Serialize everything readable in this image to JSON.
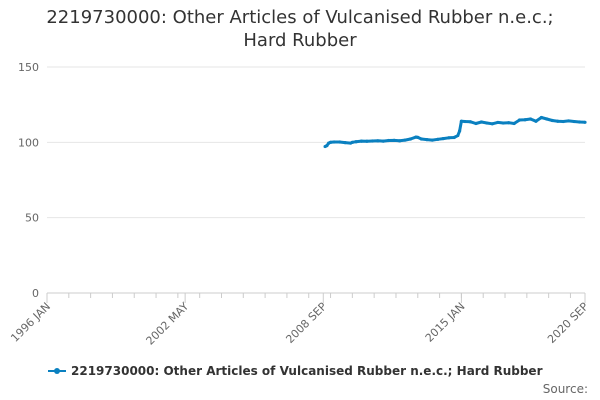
{
  "title_line1": "2219730000: Other Articles of Vulcanised Rubber n.e.c.;",
  "title_line2": "Hard Rubber",
  "source_label": "Source:",
  "colors": {
    "series": "#0a80c0",
    "grid": "#e6e6e6",
    "axis": "#cccccc"
  },
  "chart_data": {
    "type": "line",
    "title": "2219730000: Other Articles of Vulcanised Rubber n.e.c.; Hard Rubber",
    "xlabel": "",
    "ylabel": "",
    "xlim": [
      "1996-01",
      "2020-09"
    ],
    "ylim": [
      0,
      150
    ],
    "y_ticks": [
      0,
      50,
      100,
      150
    ],
    "x_ticks": [
      {
        "date": "1996-01",
        "label": "1996 JAN"
      },
      {
        "date": "2002-05",
        "label": "2002 MAY"
      },
      {
        "date": "2008-09",
        "label": "2008 SEP"
      },
      {
        "date": "2015-01",
        "label": "2015 JAN"
      },
      {
        "date": "2020-09",
        "label": "2020 SEP"
      }
    ],
    "grid": true,
    "legend": "bottom",
    "series": [
      {
        "name": "2219730000: Other Articles of Vulcanised Rubber n.e.c.; Hard Rubber",
        "x": [
          "2008-10",
          "2008-11",
          "2008-12",
          "2009-01",
          "2009-03",
          "2009-06",
          "2009-09",
          "2009-12",
          "2010-01",
          "2010-03",
          "2010-06",
          "2010-09",
          "2010-12",
          "2011-03",
          "2011-06",
          "2011-09",
          "2011-12",
          "2012-03",
          "2012-06",
          "2012-09",
          "2012-12",
          "2013-01",
          "2013-03",
          "2013-06",
          "2013-09",
          "2013-12",
          "2014-03",
          "2014-06",
          "2014-09",
          "2014-11",
          "2014-12",
          "2015-01",
          "2015-03",
          "2015-06",
          "2015-09",
          "2015-12",
          "2016-03",
          "2016-06",
          "2016-09",
          "2016-12",
          "2017-03",
          "2017-06",
          "2017-09",
          "2017-12",
          "2018-03",
          "2018-06",
          "2018-09",
          "2018-12",
          "2019-03",
          "2019-06",
          "2019-09",
          "2019-12",
          "2020-03",
          "2020-06",
          "2020-09"
        ],
        "y": [
          97.2,
          97.8,
          99.5,
          100.0,
          100.2,
          100.2,
          99.8,
          99.5,
          100.0,
          100.4,
          100.8,
          100.7,
          100.9,
          101.0,
          100.8,
          101.2,
          101.3,
          101.0,
          101.5,
          102.2,
          103.5,
          103.3,
          102.2,
          101.8,
          101.5,
          102.0,
          102.5,
          103.0,
          103.2,
          104.5,
          107.5,
          114.0,
          113.8,
          113.6,
          112.5,
          113.5,
          112.8,
          112.3,
          113.2,
          112.8,
          113.0,
          112.5,
          114.8,
          115.0,
          115.5,
          114.0,
          116.5,
          115.5,
          114.5,
          114.0,
          113.8,
          114.2,
          113.8,
          113.5,
          113.3
        ]
      }
    ]
  }
}
